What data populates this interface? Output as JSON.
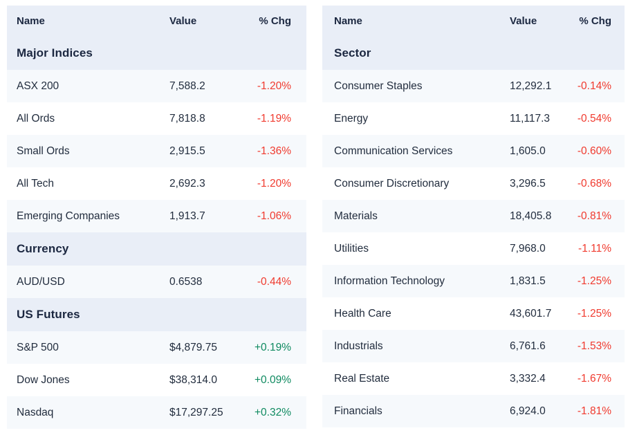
{
  "colors": {
    "header_bg": "#e9eef7",
    "row_alt": "#f6f9fc",
    "row_bg": "#ffffff",
    "text": "#222d3e",
    "heading": "#1b2740",
    "neg": "#f03a2e",
    "pos": "#0f8a60"
  },
  "columns": {
    "name": "Name",
    "value": "Value",
    "chg": "% Chg"
  },
  "left_table": {
    "sections": [
      {
        "title": "Major Indices",
        "rows": [
          {
            "name": "ASX 200",
            "value": "7,588.2",
            "chg": "-1.20%"
          },
          {
            "name": "All Ords",
            "value": "7,818.8",
            "chg": "-1.19%"
          },
          {
            "name": "Small Ords",
            "value": "2,915.5",
            "chg": "-1.36%"
          },
          {
            "name": "All Tech",
            "value": "2,692.3",
            "chg": "-1.20%"
          },
          {
            "name": "Emerging Companies",
            "value": "1,913.7",
            "chg": "-1.06%"
          }
        ]
      },
      {
        "title": "Currency",
        "rows": [
          {
            "name": "AUD/USD",
            "value": "0.6538",
            "chg": "-0.44%"
          }
        ]
      },
      {
        "title": "US Futures",
        "rows": [
          {
            "name": "S&P 500",
            "value": "$4,879.75",
            "chg": "+0.19%"
          },
          {
            "name": "Dow Jones",
            "value": "$38,314.0",
            "chg": "+0.09%"
          },
          {
            "name": "Nasdaq",
            "value": "$17,297.25",
            "chg": "+0.32%"
          }
        ]
      }
    ]
  },
  "right_table": {
    "sections": [
      {
        "title": "Sector",
        "rows": [
          {
            "name": "Consumer Staples",
            "value": "12,292.1",
            "chg": "-0.14%"
          },
          {
            "name": "Energy",
            "value": "11,117.3",
            "chg": "-0.54%"
          },
          {
            "name": "Communication Services",
            "value": "1,605.0",
            "chg": "-0.60%"
          },
          {
            "name": "Consumer Discretionary",
            "value": "3,296.5",
            "chg": "-0.68%"
          },
          {
            "name": "Materials",
            "value": "18,405.8",
            "chg": "-0.81%"
          },
          {
            "name": "Utilities",
            "value": "7,968.0",
            "chg": "-1.11%"
          },
          {
            "name": "Information Technology",
            "value": "1,831.5",
            "chg": "-1.25%"
          },
          {
            "name": "Health Care",
            "value": "43,601.7",
            "chg": "-1.25%"
          },
          {
            "name": "Industrials",
            "value": "6,761.6",
            "chg": "-1.53%"
          },
          {
            "name": "Real Estate",
            "value": "3,332.4",
            "chg": "-1.67%"
          },
          {
            "name": "Financials",
            "value": "6,924.0",
            "chg": "-1.81%"
          }
        ]
      }
    ]
  }
}
